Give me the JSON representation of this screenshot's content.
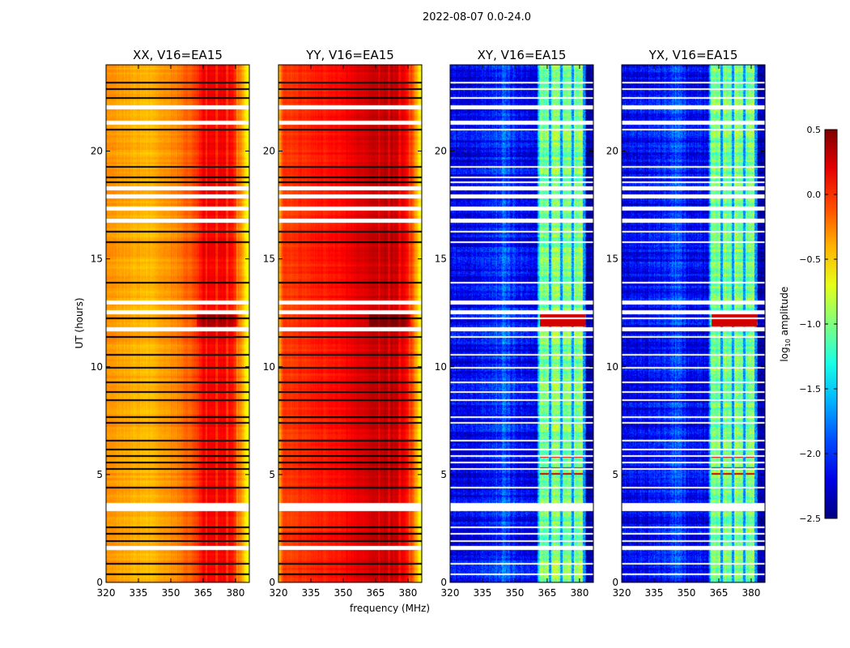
{
  "suptitle": "2022-08-07 0.0-24.0",
  "chart_data": {
    "type": "heatmap",
    "xlabel": "frequency (MHz)",
    "ylabel": "UT (hours)",
    "xlim": [
      320,
      386.4
    ],
    "ylim": [
      0,
      24
    ],
    "xticks": [
      320,
      335,
      350,
      365,
      380
    ],
    "yticks": [
      0,
      5,
      10,
      15,
      20
    ],
    "colorbar": {
      "label_main": "log",
      "label_sub": "10",
      "label_rest": " amplitude",
      "range": [
        -2.5,
        0.5
      ],
      "ticks": [
        "0.5",
        "0.0",
        "−0.5",
        "−1.0",
        "−1.5",
        "−2.0",
        "−2.5"
      ],
      "tick_values": [
        0.5,
        0.0,
        -0.5,
        -1.0,
        -1.5,
        -2.0,
        -2.5
      ],
      "colormap": "jet"
    },
    "flagged_white_hours": [
      22.05,
      21.35,
      18.3,
      17.9,
      17.35,
      16.8,
      13.0,
      12.55,
      11.75,
      3.6,
      3.4,
      1.6
    ],
    "panels": [
      {
        "title": "XX, V16=EA15",
        "line_color": "#000000",
        "profile_freq": [
          320,
          330,
          340,
          350,
          356,
          362,
          365,
          372,
          378,
          381,
          383,
          385,
          386.4
        ],
        "profile_val": [
          -0.3,
          -0.38,
          -0.42,
          -0.3,
          -0.2,
          -0.05,
          0.15,
          0.15,
          0.1,
          -0.15,
          -0.4,
          -0.6,
          -0.7
        ]
      },
      {
        "title": "YY, V16=EA15",
        "line_color": "#000000",
        "profile_freq": [
          320,
          322,
          330,
          340,
          350,
          360,
          365,
          372,
          378,
          381,
          383,
          385,
          386.4
        ],
        "profile_val": [
          -0.4,
          -0.05,
          0.0,
          0.05,
          0.12,
          0.22,
          0.3,
          0.3,
          0.2,
          0.0,
          -0.3,
          -0.55,
          -0.65
        ]
      },
      {
        "title": "XY, V16=EA15",
        "line_color": "#ffffff",
        "profile_freq": [
          320,
          330,
          340,
          345,
          350,
          356,
          360,
          361.5,
          372,
          382,
          383,
          386.4
        ],
        "profile_val": [
          -2.2,
          -2.15,
          -2.05,
          -1.85,
          -2.1,
          -2.15,
          -2.2,
          -1.0,
          -1.0,
          -1.0,
          -2.4,
          -2.4
        ]
      },
      {
        "title": "YX, V16=EA15",
        "line_color": "#ffffff",
        "profile_freq": [
          320,
          330,
          340,
          345,
          350,
          356,
          360,
          361.5,
          372,
          382,
          383,
          386.4
        ],
        "profile_val": [
          -2.2,
          -2.15,
          -2.05,
          -1.85,
          -2.1,
          -2.15,
          -2.2,
          -1.0,
          -1.0,
          -1.0,
          -2.4,
          -2.4
        ]
      }
    ],
    "flagged_line_hours": [
      23.2,
      22.9,
      22.5,
      21.05,
      19.3,
      18.8,
      18.6,
      16.3,
      15.8,
      13.95,
      12.3,
      11.4,
      10.6,
      10.0,
      9.3,
      8.85,
      8.5,
      7.7,
      7.45,
      6.6,
      6.2,
      5.9,
      5.6,
      5.3,
      4.45,
      2.6,
      2.3,
      1.95,
      0.9,
      0.4
    ]
  }
}
